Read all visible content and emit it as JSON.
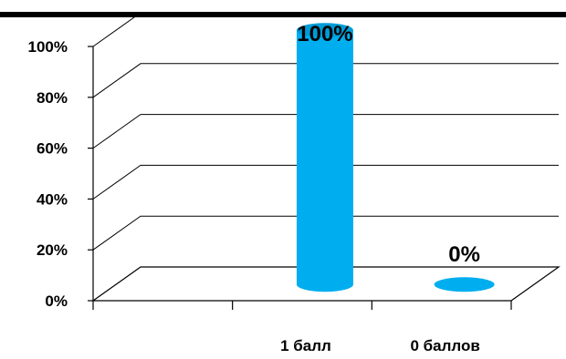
{
  "chart_data": {
    "type": "bar",
    "categories": [
      "1 балл",
      "0 баллов"
    ],
    "series": [
      {
        "values": [
          100,
          0
        ],
        "data_labels": [
          "100%",
          "0%"
        ]
      }
    ],
    "yticks": [
      "0%",
      "20%",
      "40%",
      "60%",
      "80%",
      "100%"
    ],
    "ylim": [
      0,
      100
    ],
    "title": "",
    "xlabel": "",
    "ylabel": "",
    "grid": true,
    "style": "3d-cylinder",
    "bar_color": "#00AEEF",
    "bar_top_color": "#009BD6",
    "line_color": "#000000"
  }
}
